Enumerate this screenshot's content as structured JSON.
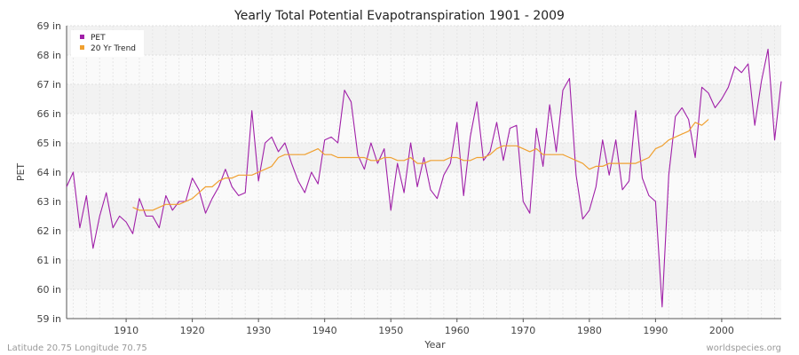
{
  "chart_data": {
    "type": "line",
    "title": "Yearly Total Potential Evapotranspiration 1901 - 2009",
    "xlabel": "Year",
    "ylabel": "PET",
    "xlim": [
      1901,
      2009
    ],
    "ylim": [
      59,
      69
    ],
    "x_ticks": [
      1910,
      1920,
      1930,
      1940,
      1950,
      1960,
      1970,
      1980,
      1990,
      2000
    ],
    "y_ticks": [
      "59 in",
      "60 in",
      "61 in",
      "62 in",
      "63 in",
      "64 in",
      "65 in",
      "66 in",
      "67 in",
      "68 in",
      "69 in"
    ],
    "grid": true,
    "legend_position": "top-left",
    "series": [
      {
        "name": "PET",
        "color": "#a020a8",
        "x_start": 1901,
        "values": [
          63.5,
          64.0,
          62.1,
          63.2,
          61.4,
          62.5,
          63.3,
          62.1,
          62.5,
          62.3,
          61.9,
          63.1,
          62.5,
          62.5,
          62.1,
          63.2,
          62.7,
          63.0,
          63.0,
          63.8,
          63.4,
          62.6,
          63.1,
          63.5,
          64.1,
          63.5,
          63.2,
          63.3,
          66.1,
          63.7,
          65.0,
          65.2,
          64.7,
          65.0,
          64.3,
          63.7,
          63.3,
          64.0,
          63.6,
          65.1,
          65.2,
          65.0,
          66.8,
          66.4,
          64.6,
          64.1,
          65.0,
          64.3,
          64.8,
          62.7,
          64.3,
          63.3,
          65.0,
          63.5,
          64.5,
          63.4,
          63.1,
          63.9,
          64.3,
          65.7,
          63.2,
          65.2,
          66.4,
          64.4,
          64.7,
          65.7,
          64.4,
          65.5,
          65.6,
          63.0,
          62.6,
          65.5,
          64.2,
          66.3,
          64.7,
          66.8,
          67.2,
          63.9,
          62.4,
          62.7,
          63.5,
          65.1,
          63.9,
          65.1,
          63.4,
          63.7,
          66.1,
          63.8,
          63.2,
          63.0,
          59.4,
          63.9,
          65.9,
          66.2,
          65.8,
          64.5,
          66.9,
          66.7,
          66.2,
          66.5,
          66.9,
          67.6,
          67.4,
          67.7,
          65.6,
          67.1,
          68.2,
          65.1,
          67.1
        ]
      },
      {
        "name": "20 Yr Trend",
        "color": "#f0a030",
        "x_start": 1911,
        "values": [
          62.8,
          62.7,
          62.7,
          62.7,
          62.8,
          62.9,
          62.9,
          62.9,
          63.0,
          63.1,
          63.3,
          63.5,
          63.5,
          63.7,
          63.8,
          63.8,
          63.9,
          63.9,
          63.9,
          64.0,
          64.1,
          64.2,
          64.5,
          64.6,
          64.6,
          64.6,
          64.6,
          64.7,
          64.8,
          64.6,
          64.6,
          64.5,
          64.5,
          64.5,
          64.5,
          64.5,
          64.4,
          64.4,
          64.5,
          64.5,
          64.4,
          64.4,
          64.5,
          64.3,
          64.3,
          64.4,
          64.4,
          64.4,
          64.5,
          64.5,
          64.4,
          64.4,
          64.5,
          64.5,
          64.6,
          64.8,
          64.9,
          64.9,
          64.9,
          64.8,
          64.7,
          64.8,
          64.6,
          64.6,
          64.6,
          64.6,
          64.5,
          64.4,
          64.3,
          64.1,
          64.2,
          64.2,
          64.3,
          64.3,
          64.3,
          64.3,
          64.3,
          64.4,
          64.5,
          64.8,
          64.9,
          65.1,
          65.2,
          65.3,
          65.4,
          65.7,
          65.6,
          65.8
        ]
      }
    ]
  },
  "footer": {
    "left": "Latitude 20.75 Longitude 70.75",
    "right": "worldspecies.org"
  }
}
